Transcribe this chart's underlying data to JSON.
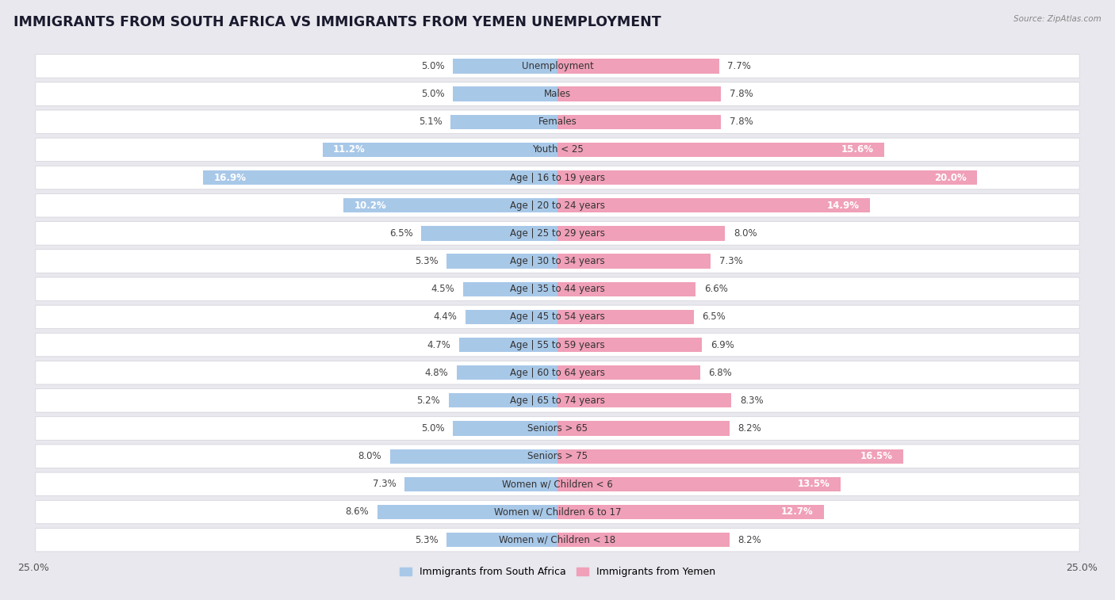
{
  "title": "IMMIGRANTS FROM SOUTH AFRICA VS IMMIGRANTS FROM YEMEN UNEMPLOYMENT",
  "source": "Source: ZipAtlas.com",
  "categories": [
    "Unemployment",
    "Males",
    "Females",
    "Youth < 25",
    "Age | 16 to 19 years",
    "Age | 20 to 24 years",
    "Age | 25 to 29 years",
    "Age | 30 to 34 years",
    "Age | 35 to 44 years",
    "Age | 45 to 54 years",
    "Age | 55 to 59 years",
    "Age | 60 to 64 years",
    "Age | 65 to 74 years",
    "Seniors > 65",
    "Seniors > 75",
    "Women w/ Children < 6",
    "Women w/ Children 6 to 17",
    "Women w/ Children < 18"
  ],
  "south_africa": [
    5.0,
    5.0,
    5.1,
    11.2,
    16.9,
    10.2,
    6.5,
    5.3,
    4.5,
    4.4,
    4.7,
    4.8,
    5.2,
    5.0,
    8.0,
    7.3,
    8.6,
    5.3
  ],
  "yemen": [
    7.7,
    7.8,
    7.8,
    15.6,
    20.0,
    14.9,
    8.0,
    7.3,
    6.6,
    6.5,
    6.9,
    6.8,
    8.3,
    8.2,
    16.5,
    13.5,
    12.7,
    8.2
  ],
  "south_africa_color": "#a8c8e8",
  "yemen_color": "#f0a0b8",
  "south_africa_label": "Immigrants from South Africa",
  "yemen_label": "Immigrants from Yemen",
  "xlim": 25.0,
  "page_bg": "#e8e8ee",
  "row_bg": "#ffffff",
  "row_border": "#d0d0d8",
  "title_fontsize": 12.5,
  "label_fontsize": 8.5,
  "value_fontsize": 8.5,
  "tick_fontsize": 9
}
